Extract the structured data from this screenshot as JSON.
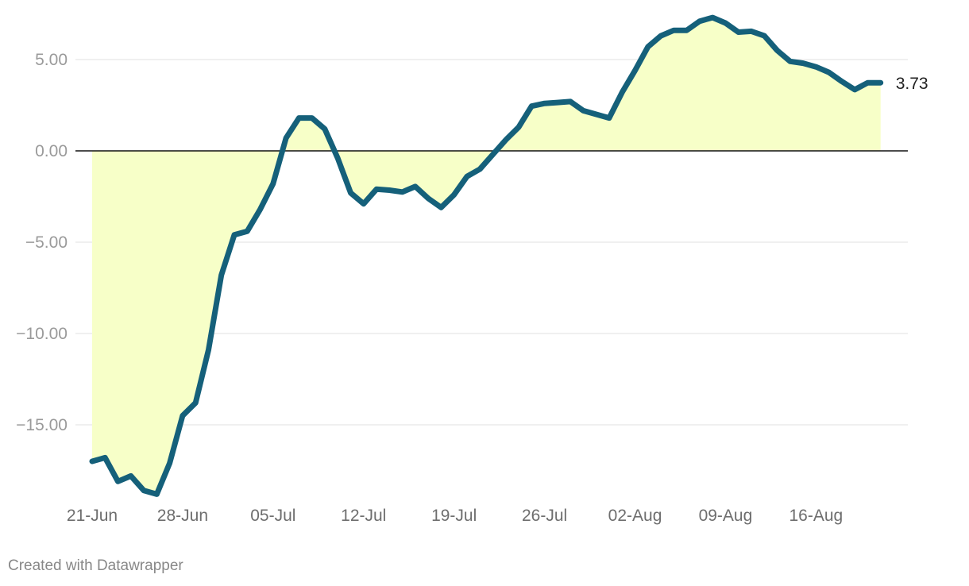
{
  "chart_data": {
    "type": "area",
    "title": "",
    "xlabel": "",
    "ylabel": "",
    "x_start": "21-Jun",
    "x_end": "22-Aug",
    "y_ticks": [
      5,
      0,
      -5,
      -10,
      -15
    ],
    "y_tick_labels": [
      "5.00",
      "0.00",
      "−5.00",
      "−10.00",
      "−15.00"
    ],
    "x_ticks": [
      {
        "date": "21-Jun",
        "label": "21-Jun"
      },
      {
        "date": "28-Jun",
        "label": "28-Jun"
      },
      {
        "date": "05-Jul",
        "label": "05-Jul"
      },
      {
        "date": "12-Jul",
        "label": "12-Jul"
      },
      {
        "date": "19-Jul",
        "label": "19-Jul"
      },
      {
        "date": "26-Jul",
        "label": "26-Jul"
      },
      {
        "date": "02-Aug",
        "label": "02-Aug"
      },
      {
        "date": "09-Aug",
        "label": "09-Aug"
      },
      {
        "date": "16-Aug",
        "label": "16-Aug"
      }
    ],
    "ylim": [
      -19,
      7.6
    ],
    "grid": true,
    "series": [
      {
        "name": "",
        "color": "#15607a",
        "fill": "#f7ffc8",
        "values": [
          {
            "date": "21-Jun",
            "y": -17.0
          },
          {
            "date": "22-Jun",
            "y": -16.8
          },
          {
            "date": "23-Jun",
            "y": -18.1
          },
          {
            "date": "24-Jun",
            "y": -17.8
          },
          {
            "date": "25-Jun",
            "y": -18.6
          },
          {
            "date": "26-Jun",
            "y": -18.8
          },
          {
            "date": "27-Jun",
            "y": -17.1
          },
          {
            "date": "28-Jun",
            "y": -14.5
          },
          {
            "date": "29-Jun",
            "y": -13.8
          },
          {
            "date": "30-Jun",
            "y": -10.9
          },
          {
            "date": "01-Jul",
            "y": -6.8
          },
          {
            "date": "02-Jul",
            "y": -4.6
          },
          {
            "date": "03-Jul",
            "y": -4.4
          },
          {
            "date": "04-Jul",
            "y": -3.2
          },
          {
            "date": "05-Jul",
            "y": -1.8
          },
          {
            "date": "06-Jul",
            "y": 0.7
          },
          {
            "date": "07-Jul",
            "y": 1.8
          },
          {
            "date": "08-Jul",
            "y": 1.8
          },
          {
            "date": "09-Jul",
            "y": 1.2
          },
          {
            "date": "10-Jul",
            "y": -0.4
          },
          {
            "date": "11-Jul",
            "y": -2.3
          },
          {
            "date": "12-Jul",
            "y": -2.9
          },
          {
            "date": "13-Jul",
            "y": -2.1
          },
          {
            "date": "14-Jul",
            "y": -2.15
          },
          {
            "date": "15-Jul",
            "y": -2.25
          },
          {
            "date": "16-Jul",
            "y": -1.95
          },
          {
            "date": "17-Jul",
            "y": -2.6
          },
          {
            "date": "18-Jul",
            "y": -3.1
          },
          {
            "date": "19-Jul",
            "y": -2.4
          },
          {
            "date": "20-Jul",
            "y": -1.4
          },
          {
            "date": "21-Jul",
            "y": -1.0
          },
          {
            "date": "22-Jul",
            "y": -0.2
          },
          {
            "date": "23-Jul",
            "y": 0.6
          },
          {
            "date": "24-Jul",
            "y": 1.3
          },
          {
            "date": "25-Jul",
            "y": 2.45
          },
          {
            "date": "26-Jul",
            "y": 2.6
          },
          {
            "date": "27-Jul",
            "y": 2.65
          },
          {
            "date": "28-Jul",
            "y": 2.7
          },
          {
            "date": "29-Jul",
            "y": 2.2
          },
          {
            "date": "30-Jul",
            "y": 2.0
          },
          {
            "date": "31-Jul",
            "y": 1.8
          },
          {
            "date": "01-Aug",
            "y": 3.2
          },
          {
            "date": "02-Aug",
            "y": 4.4
          },
          {
            "date": "03-Aug",
            "y": 5.7
          },
          {
            "date": "04-Aug",
            "y": 6.3
          },
          {
            "date": "05-Aug",
            "y": 6.6
          },
          {
            "date": "06-Aug",
            "y": 6.6
          },
          {
            "date": "07-Aug",
            "y": 7.1
          },
          {
            "date": "08-Aug",
            "y": 7.3
          },
          {
            "date": "09-Aug",
            "y": 7.0
          },
          {
            "date": "10-Aug",
            "y": 6.5
          },
          {
            "date": "11-Aug",
            "y": 6.55
          },
          {
            "date": "12-Aug",
            "y": 6.3
          },
          {
            "date": "13-Aug",
            "y": 5.5
          },
          {
            "date": "14-Aug",
            "y": 4.9
          },
          {
            "date": "15-Aug",
            "y": 4.8
          },
          {
            "date": "16-Aug",
            "y": 4.6
          },
          {
            "date": "17-Aug",
            "y": 4.3
          },
          {
            "date": "18-Aug",
            "y": 3.8
          },
          {
            "date": "19-Aug",
            "y": 3.35
          },
          {
            "date": "20-Aug",
            "y": 3.73
          },
          {
            "date": "21-Aug",
            "y": 3.73
          }
        ],
        "end_label": "3.73"
      }
    ]
  },
  "footer": {
    "credit": "Created with Datawrapper"
  }
}
